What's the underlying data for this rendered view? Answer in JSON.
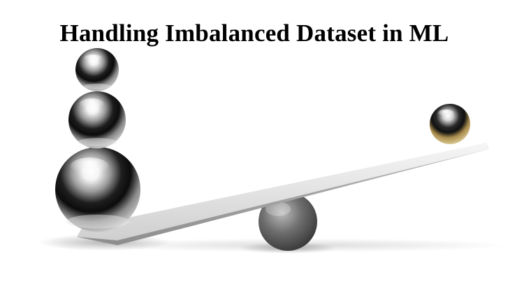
{
  "title": "Handling Imbalanced Dataset in ML",
  "illustration": {
    "subject": "seesaw",
    "colors": {
      "background": "#ffffff",
      "chrome_dark": "#1a1a1a",
      "chrome_light": "#f2f2f2",
      "gold": "#b79a5a",
      "plank": "#e6e6e6"
    },
    "icons": [
      "large-chrome-sphere",
      "medium-chrome-sphere",
      "small-chrome-sphere",
      "gold-sphere",
      "fulcrum-sphere",
      "seesaw-plank"
    ]
  }
}
